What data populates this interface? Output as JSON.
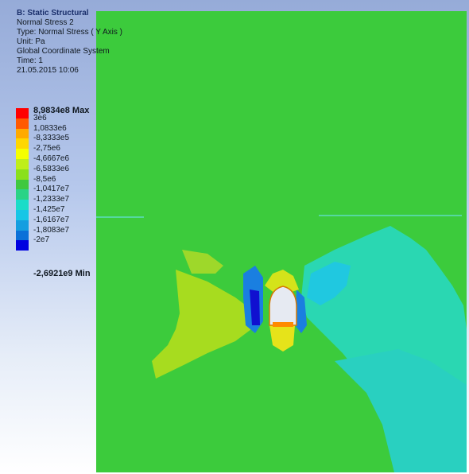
{
  "info": {
    "title": "B: Static Structural",
    "result_name": "Normal Stress 2",
    "type": "Type: Normal Stress ( Y Axis )",
    "unit": "Unit: Pa",
    "coordinate_system": "Global Coordinate System",
    "time": "Time: 1",
    "date": "21.05.2015 10:06"
  },
  "legend": {
    "max_label": "8,9834e8 Max",
    "min_label": "-2,6921e9 Min",
    "labels": [
      "3e6",
      "1,0833e6",
      "-8,3333e5",
      "-2,75e6",
      "-4,6667e6",
      "-6,5833e6",
      "-8,5e6",
      "-1,0417e7",
      "-1,2333e7",
      "-1,425e7",
      "-1,6167e7",
      "-1,8083e7",
      "-2e7"
    ],
    "colors": [
      "#ff0000",
      "#ff5a00",
      "#ffaa00",
      "#ffd700",
      "#f5ff00",
      "#bfee1a",
      "#8ae01c",
      "#3fc83f",
      "#2ad386",
      "#1bdcc8",
      "#17c6e6",
      "#149ee0",
      "#0a70d8",
      "#0000e0"
    ]
  },
  "field": {
    "background_color": "#3ccb3c"
  }
}
